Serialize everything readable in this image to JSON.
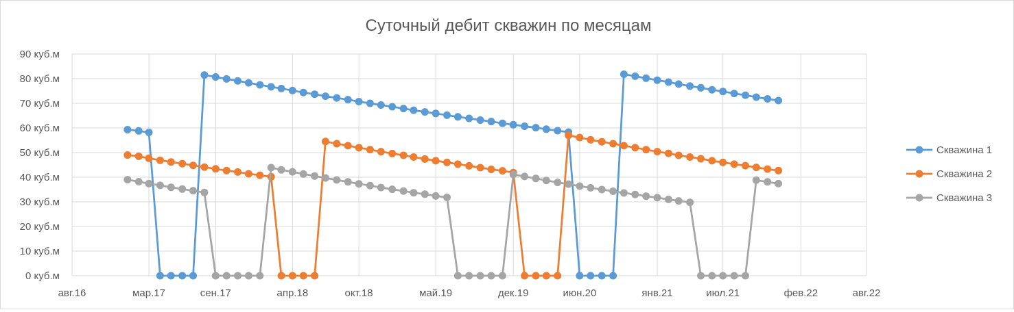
{
  "chart_data": {
    "type": "line",
    "title": "Суточный дебит скважин по месяцам",
    "xlabel": "",
    "ylabel": "",
    "ylim": [
      0,
      90
    ],
    "ytick_values": [
      0,
      10,
      20,
      30,
      40,
      50,
      60,
      70,
      80,
      90
    ],
    "ytick_labels": [
      "0 куб.м",
      "10 куб.м",
      "20 куб.м",
      "30 куб.м",
      "40 куб.м",
      "50 куб.м",
      "60 куб.м",
      "70 куб.м",
      "80 куб.м",
      "90 куб.м"
    ],
    "xlim": [
      "2016-08-01",
      "2022-08-01"
    ],
    "xtick_dates": [
      "2016-08-01",
      "2017-03-01",
      "2017-09-01",
      "2018-04-01",
      "2018-10-01",
      "2019-05-01",
      "2019-12-01",
      "2020-06-01",
      "2021-01-01",
      "2021-07-01",
      "2022-02-01",
      "2022-08-01"
    ],
    "xtick_labels": [
      "авг.16",
      "мар.17",
      "сен.17",
      "апр.18",
      "окт.18",
      "май.19",
      "дек.19",
      "июн.20",
      "янв.21",
      "июл.21",
      "фев.22",
      "авг.22"
    ],
    "grid": true,
    "legend_position": "right",
    "x_dates": [
      "2017-01",
      "2017-02",
      "2017-03",
      "2017-04",
      "2017-05",
      "2017-06",
      "2017-07",
      "2017-08",
      "2017-09",
      "2017-10",
      "2017-11",
      "2017-12",
      "2018-01",
      "2018-02",
      "2018-03",
      "2018-04",
      "2018-05",
      "2018-06",
      "2018-07",
      "2018-08",
      "2018-09",
      "2018-10",
      "2018-11",
      "2018-12",
      "2019-01",
      "2019-02",
      "2019-03",
      "2019-04",
      "2019-05",
      "2019-06",
      "2019-07",
      "2019-08",
      "2019-09",
      "2019-10",
      "2019-11",
      "2019-12",
      "2020-01",
      "2020-02",
      "2020-03",
      "2020-04",
      "2020-05",
      "2020-06",
      "2020-07",
      "2020-08",
      "2020-09",
      "2020-10",
      "2020-11",
      "2020-12",
      "2021-01",
      "2021-02",
      "2021-03",
      "2021-04",
      "2021-05",
      "2021-06",
      "2021-07",
      "2021-08",
      "2021-09",
      "2021-10",
      "2021-11",
      "2021-12"
    ],
    "series": [
      {
        "name": "Скважина 1",
        "color": "#5b9bd5",
        "values": [
          59.3,
          58.8,
          58.2,
          0,
          0,
          0,
          0,
          81.5,
          80.7,
          79.9,
          79.1,
          78.3,
          77.5,
          76.7,
          76.0,
          75.2,
          74.4,
          73.7,
          72.9,
          72.2,
          71.5,
          70.7,
          70.0,
          69.3,
          68.6,
          67.9,
          67.2,
          66.5,
          65.9,
          65.2,
          64.5,
          63.9,
          63.2,
          62.6,
          61.9,
          61.3,
          60.7,
          60.1,
          59.5,
          58.9,
          58.3,
          0,
          0,
          0,
          0,
          81.8,
          81.0,
          80.2,
          79.4,
          78.6,
          77.8,
          77.0,
          76.3,
          75.5,
          74.8,
          74.0,
          73.3,
          72.5,
          71.8,
          71.1
        ]
      },
      {
        "name": "Скважина 2",
        "color": "#ed7d31",
        "values": [
          49.0,
          48.5,
          47.7,
          46.9,
          46.2,
          45.5,
          44.8,
          44.1,
          43.4,
          42.7,
          42.1,
          41.4,
          40.8,
          40.2,
          0,
          0,
          0,
          0,
          54.5,
          53.6,
          52.8,
          52.0,
          51.2,
          50.4,
          49.6,
          48.9,
          48.2,
          47.4,
          46.7,
          46.0,
          45.3,
          44.6,
          43.9,
          43.2,
          42.6,
          41.9,
          0,
          0,
          0,
          0,
          57.0,
          56.1,
          55.2,
          54.4,
          53.6,
          52.8,
          52.0,
          51.2,
          50.4,
          49.7,
          48.9,
          48.2,
          47.5,
          46.7,
          46.0,
          45.3,
          44.7,
          44.0,
          43.3,
          42.7
        ]
      },
      {
        "name": "Скважина 3",
        "color": "#a5a5a5",
        "values": [
          39.0,
          38.2,
          37.4,
          36.7,
          35.9,
          35.2,
          34.5,
          33.8,
          0,
          0,
          0,
          0,
          0,
          43.9,
          43.0,
          42.2,
          41.3,
          40.5,
          39.7,
          38.9,
          38.1,
          37.3,
          36.6,
          35.8,
          35.1,
          34.4,
          33.7,
          33.1,
          32.4,
          31.8,
          0,
          0,
          0,
          0,
          0,
          41.1,
          40.3,
          39.5,
          38.7,
          37.9,
          37.2,
          36.4,
          35.7,
          35.0,
          34.3,
          33.6,
          33.0,
          32.3,
          31.7,
          31.0,
          30.4,
          29.8,
          0,
          0,
          0,
          0,
          0,
          38.8,
          38.1,
          37.4
        ]
      }
    ]
  }
}
